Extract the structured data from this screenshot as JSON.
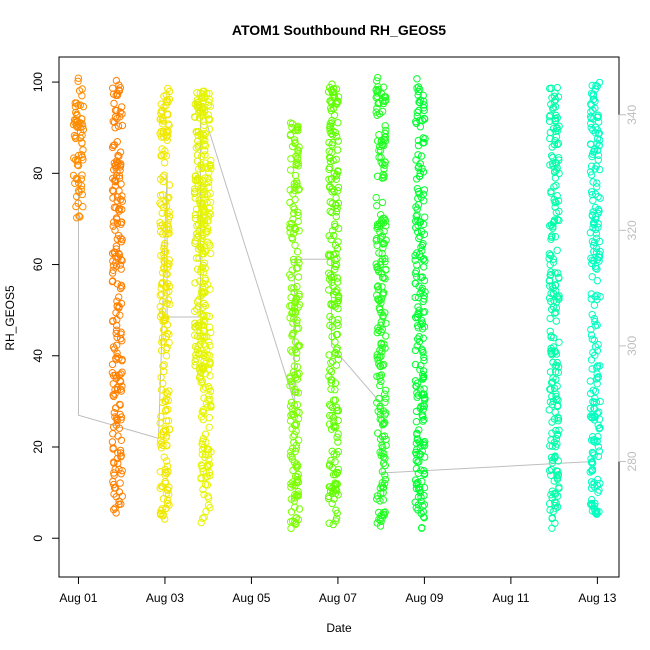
{
  "chart_data": {
    "type": "scatter",
    "title": "ATOM1 Southbound RH_GEOS5",
    "xlabel": "Date",
    "ylabel": "RH_GEOS5",
    "x_ticks": [
      {
        "day": 1,
        "label": "Aug 01"
      },
      {
        "day": 3,
        "label": "Aug 03"
      },
      {
        "day": 5,
        "label": "Aug 05"
      },
      {
        "day": 7,
        "label": "Aug 07"
      },
      {
        "day": 9,
        "label": "Aug 09"
      },
      {
        "day": 11,
        "label": "Aug 11"
      },
      {
        "day": 13,
        "label": "Aug 13"
      }
    ],
    "xlim": [
      0.55,
      13.5
    ],
    "ylim": [
      -8.5,
      105.5
    ],
    "y_ticks": [
      0,
      20,
      40,
      60,
      80,
      100
    ],
    "y2_ticks": [
      280,
      300,
      320,
      340
    ],
    "y2lim": [
      260,
      350
    ],
    "marker": "open-circle",
    "point_clusters": [
      {
        "day": 1.0,
        "ymin": 70,
        "ymax": 101,
        "color": "#ff8c00"
      },
      {
        "day": 1.9,
        "ymin": 5,
        "ymax": 101,
        "color": "#ff8000"
      },
      {
        "day": 3.0,
        "ymin": 4,
        "ymax": 99,
        "color": "#f0e800"
      },
      {
        "day": 3.8,
        "ymin": 35,
        "ymax": 100,
        "color": "#e0f000"
      },
      {
        "day": 3.95,
        "ymin": 3,
        "ymax": 98,
        "color": "#e6f500"
      },
      {
        "day": 6.0,
        "ymin": 2,
        "ymax": 92,
        "color": "#7cff00"
      },
      {
        "day": 6.9,
        "ymin": 3,
        "ymax": 100,
        "color": "#60ff00"
      },
      {
        "day": 8.0,
        "ymin": 2,
        "ymax": 101,
        "color": "#20ff20"
      },
      {
        "day": 8.9,
        "ymin": 2,
        "ymax": 101,
        "color": "#00ff30"
      },
      {
        "day": 12.0,
        "ymin": 2,
        "ymax": 99,
        "color": "#00ffaa"
      },
      {
        "day": 12.95,
        "ymin": 5,
        "ymax": 100,
        "color": "#00ffc0"
      }
    ],
    "secondary_line": {
      "color": "#bebebe",
      "axis": "right",
      "points": [
        {
          "day": 1.0,
          "v": 330
        },
        {
          "day": 1.0,
          "v": 288
        },
        {
          "day": 2.85,
          "v": 284
        },
        {
          "day": 3.05,
          "v": 330
        },
        {
          "day": 3.05,
          "v": 305
        },
        {
          "day": 3.82,
          "v": 305
        },
        {
          "day": 3.82,
          "v": 342
        },
        {
          "day": 6.0,
          "v": 290
        },
        {
          "day": 6.0,
          "v": 315
        },
        {
          "day": 6.85,
          "v": 315
        },
        {
          "day": 6.85,
          "v": 300
        },
        {
          "day": 8.0,
          "v": 290
        },
        {
          "day": 8.0,
          "v": 278
        },
        {
          "day": 12.95,
          "v": 280
        }
      ]
    }
  }
}
